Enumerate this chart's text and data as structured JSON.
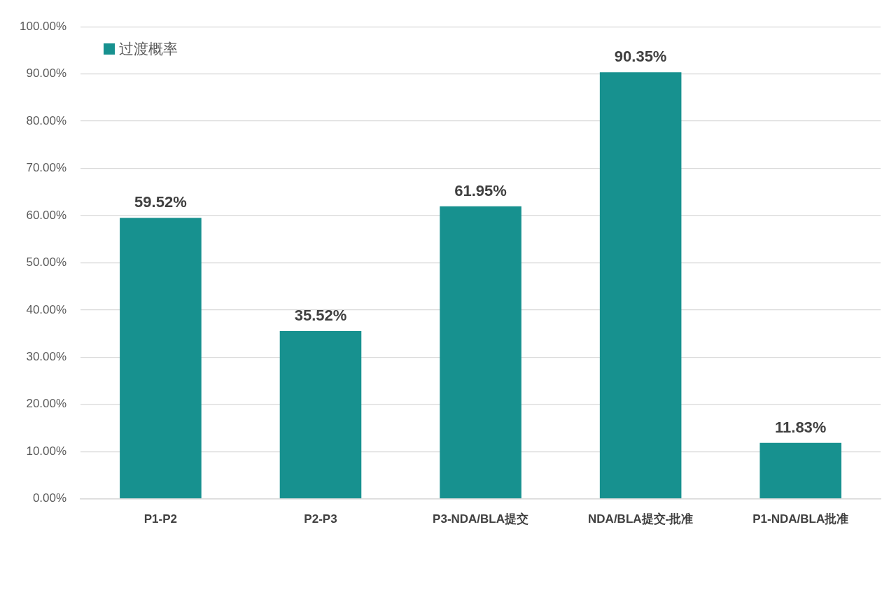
{
  "chart_data": {
    "type": "bar",
    "categories": [
      "P1-P2",
      "P2-P3",
      "P3-NDA/BLA提交",
      "NDA/BLA提交-批准",
      "P1-NDA/BLA批准"
    ],
    "series": [
      {
        "name": "过渡概率",
        "color": "#17918f",
        "values": [
          59.52,
          35.52,
          61.95,
          90.35,
          11.83
        ],
        "value_labels": [
          "59.52%",
          "35.52%",
          "61.95%",
          "90.35%",
          "11.83%"
        ]
      }
    ],
    "ylim": [
      0,
      100
    ],
    "yticks": [
      {
        "value": 0,
        "label": "0.00%"
      },
      {
        "value": 10,
        "label": "10.00%"
      },
      {
        "value": 20,
        "label": "20.00%"
      },
      {
        "value": 30,
        "label": "30.00%"
      },
      {
        "value": 40,
        "label": "40.00%"
      },
      {
        "value": 50,
        "label": "50.00%"
      },
      {
        "value": 60,
        "label": "60.00%"
      },
      {
        "value": 70,
        "label": "70.00%"
      },
      {
        "value": 80,
        "label": "80.00%"
      },
      {
        "value": 90,
        "label": "90.00%"
      },
      {
        "value": 100,
        "label": "100.00%"
      }
    ],
    "grid": "y",
    "legend": "top left"
  }
}
